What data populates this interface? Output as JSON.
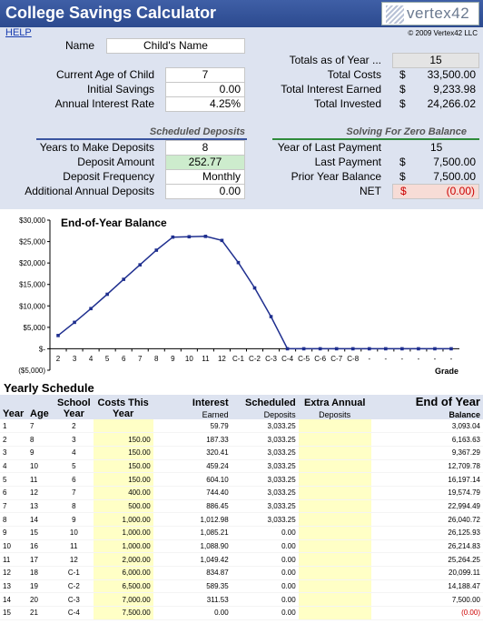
{
  "title": "College Savings Calculator",
  "logo_text": "vertex42",
  "help_link": "HELP",
  "copyright": "© 2009 Vertex42 LLC",
  "inputs": {
    "name_label": "Name",
    "name_value": "Child's Name",
    "age_label": "Current Age of Child",
    "age_value": "7",
    "savings_label": "Initial Savings",
    "savings_value": "0.00",
    "rate_label": "Annual Interest Rate",
    "rate_value": "4.25%"
  },
  "totals": {
    "asof_label": "Totals as of Year ...",
    "asof_value": "15",
    "costs_label": "Total Costs",
    "costs_value": "33,500.00",
    "interest_label": "Total Interest Earned",
    "interest_value": "9,233.98",
    "invested_label": "Total Invested",
    "invested_value": "24,266.02",
    "currency": "$"
  },
  "deposits": {
    "heading": "Scheduled Deposits",
    "years_label": "Years to Make Deposits",
    "years_value": "8",
    "amount_label": "Deposit Amount",
    "amount_value": "252.77",
    "freq_label": "Deposit Frequency",
    "freq_value": "Monthly",
    "additional_label": "Additional Annual Deposits",
    "additional_value": "0.00"
  },
  "zero_balance": {
    "heading": "Solving For Zero Balance",
    "year_last_label": "Year of Last Payment",
    "year_last_value": "15",
    "last_payment_label": "Last Payment",
    "last_payment_value": "7,500.00",
    "prior_label": "Prior Year Balance",
    "prior_value": "7,500.00",
    "net_label": "NET",
    "net_value": "(0.00)",
    "currency": "$"
  },
  "chart_data": {
    "type": "line",
    "title": "End-of-Year Balance",
    "xlabel": "Grade",
    "ylabel": "",
    "categories": [
      "2",
      "3",
      "4",
      "5",
      "6",
      "7",
      "8",
      "9",
      "10",
      "11",
      "12",
      "C-1",
      "C-2",
      "C-3",
      "C-4",
      "C-5",
      "C-6",
      "C-7",
      "C-8",
      "-",
      "-",
      "-",
      "-",
      "-",
      "-"
    ],
    "values": [
      3093,
      6164,
      9367,
      12710,
      16197,
      19575,
      22995,
      26041,
      26126,
      26215,
      25264,
      20099,
      14188,
      7500,
      0,
      0,
      0,
      0,
      0,
      0,
      0,
      0,
      0,
      0,
      0
    ],
    "ylim": [
      -5000,
      30000
    ],
    "yticks": [
      -5000,
      0,
      5000,
      10000,
      15000,
      20000,
      25000,
      30000
    ],
    "ytick_labels": [
      "($5,000)",
      "$-",
      "$5,000",
      "$10,000",
      "$15,000",
      "$20,000",
      "$25,000",
      "$30,000"
    ],
    "line_color": "#1f2f8f",
    "grid": false
  },
  "schedule": {
    "heading": "Yearly Schedule",
    "headers": {
      "year": "Year",
      "age": "Age",
      "school1": "School",
      "school2": "Year",
      "costs1": "Costs This",
      "costs2": "Year",
      "interest1": "Interest",
      "interest2": "Earned",
      "scheduled1": "Scheduled",
      "scheduled2": "Deposits",
      "extra1": "Extra Annual",
      "extra2": "Deposits",
      "balance1": "End of Year",
      "balance2": "Balance"
    },
    "rows": [
      [
        "1",
        "7",
        "2",
        "",
        "59.79",
        "3,033.25",
        "",
        "3,093.04"
      ],
      [
        "2",
        "8",
        "3",
        "150.00",
        "187.33",
        "3,033.25",
        "",
        "6,163.63"
      ],
      [
        "3",
        "9",
        "4",
        "150.00",
        "320.41",
        "3,033.25",
        "",
        "9,367.29"
      ],
      [
        "4",
        "10",
        "5",
        "150.00",
        "459.24",
        "3,033.25",
        "",
        "12,709.78"
      ],
      [
        "5",
        "11",
        "6",
        "150.00",
        "604.10",
        "3,033.25",
        "",
        "16,197.14"
      ],
      [
        "6",
        "12",
        "7",
        "400.00",
        "744.40",
        "3,033.25",
        "",
        "19,574.79"
      ],
      [
        "7",
        "13",
        "8",
        "500.00",
        "886.45",
        "3,033.25",
        "",
        "22,994.49"
      ],
      [
        "8",
        "14",
        "9",
        "1,000.00",
        "1,012.98",
        "3,033.25",
        "",
        "26,040.72"
      ],
      [
        "9",
        "15",
        "10",
        "1,000.00",
        "1,085.21",
        "0.00",
        "",
        "26,125.93"
      ],
      [
        "10",
        "16",
        "11",
        "1,000.00",
        "1,088.90",
        "0.00",
        "",
        "26,214.83"
      ],
      [
        "11",
        "17",
        "12",
        "2,000.00",
        "1,049.42",
        "0.00",
        "",
        "25,264.25"
      ],
      [
        "12",
        "18",
        "C-1",
        "6,000.00",
        "834.87",
        "0.00",
        "",
        "20,099.11"
      ],
      [
        "13",
        "19",
        "C-2",
        "6,500.00",
        "589.35",
        "0.00",
        "",
        "14,188.47"
      ],
      [
        "14",
        "20",
        "C-3",
        "7,000.00",
        "311.53",
        "0.00",
        "",
        "7,500.00"
      ],
      [
        "15",
        "21",
        "C-4",
        "7,500.00",
        "0.00",
        "0.00",
        "",
        "(0.00)"
      ]
    ]
  }
}
